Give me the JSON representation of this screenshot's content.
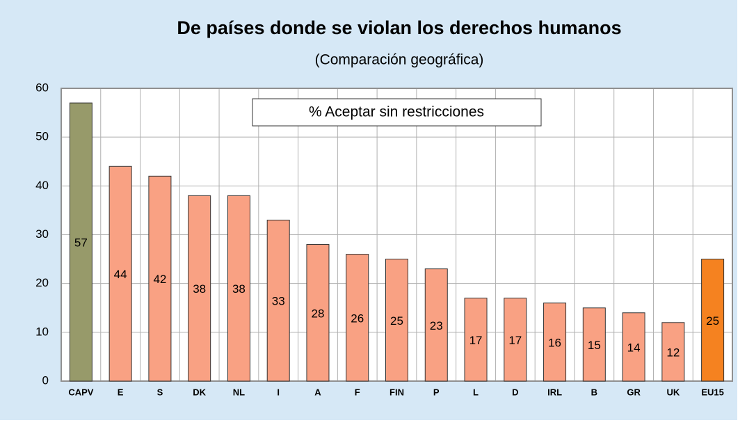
{
  "chart_data": {
    "type": "bar",
    "title": "De países donde se violan los derechos humanos",
    "subtitle": "(Comparación geográfica)",
    "legend": "% Aceptar sin restricciones",
    "categories": [
      "CAPV",
      "E",
      "S",
      "DK",
      "NL",
      "I",
      "A",
      "F",
      "FIN",
      "P",
      "L",
      "D",
      "IRL",
      "B",
      "GR",
      "UK",
      "EU15"
    ],
    "values": [
      57,
      44,
      42,
      38,
      38,
      33,
      28,
      26,
      25,
      23,
      17,
      17,
      16,
      15,
      14,
      12,
      25
    ],
    "colors": [
      "#979a6a",
      "#f9a183",
      "#f9a183",
      "#f9a183",
      "#f9a183",
      "#f9a183",
      "#f9a183",
      "#f9a183",
      "#f9a183",
      "#f9a183",
      "#f9a183",
      "#f9a183",
      "#f9a183",
      "#f9a183",
      "#f9a183",
      "#f9a183",
      "#f58220"
    ],
    "ylim": [
      0,
      60
    ],
    "yticks": [
      0,
      10,
      20,
      30,
      40,
      50,
      60
    ],
    "grid": true
  }
}
